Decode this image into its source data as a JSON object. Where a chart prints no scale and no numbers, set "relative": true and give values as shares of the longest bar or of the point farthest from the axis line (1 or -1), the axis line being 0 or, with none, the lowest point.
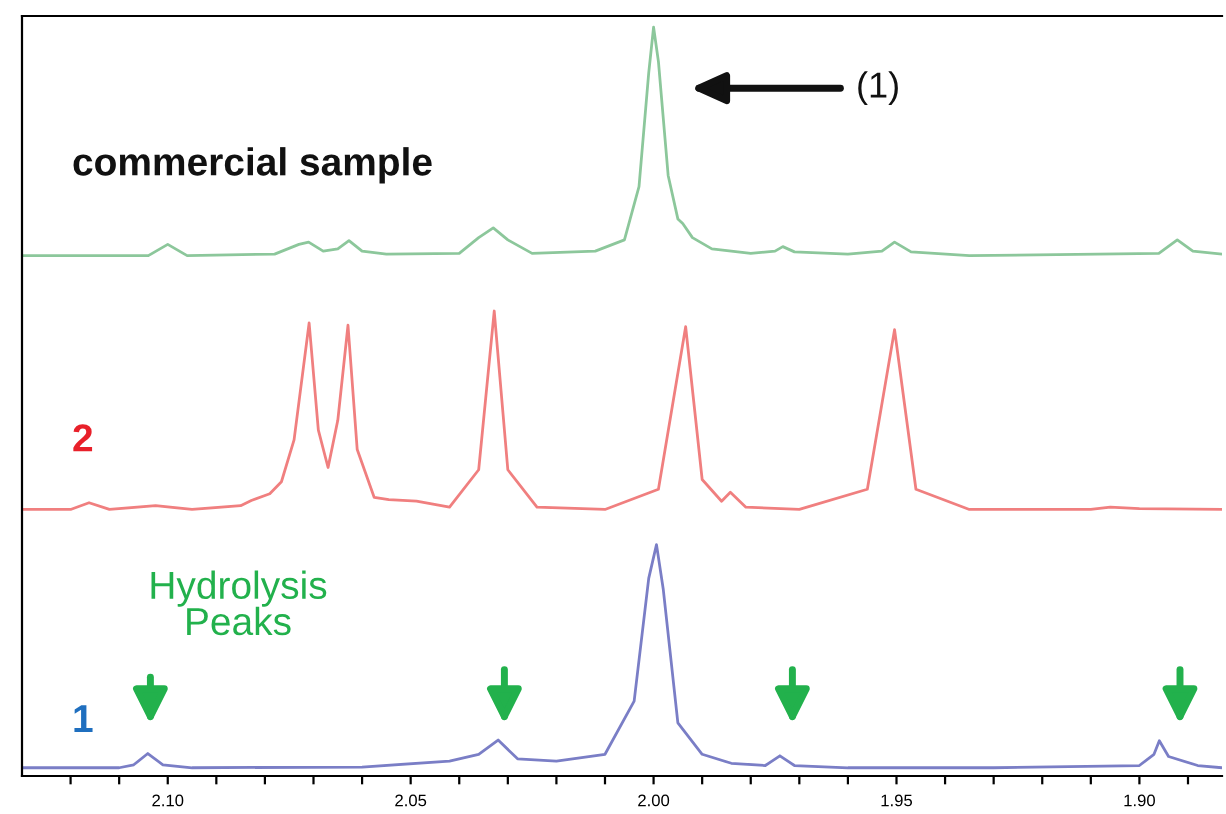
{
  "chart_data": {
    "type": "line",
    "relative": true,
    "xlim": [
      2.13,
      1.883
    ],
    "xticks": [
      {
        "value": 2.12,
        "label": null
      },
      {
        "value": 2.11,
        "label": null
      },
      {
        "value": 2.1,
        "label": "2.10"
      },
      {
        "value": 2.09,
        "label": null
      },
      {
        "value": 2.08,
        "label": null
      },
      {
        "value": 2.07,
        "label": null
      },
      {
        "value": 2.06,
        "label": null
      },
      {
        "value": 2.05,
        "label": "2.05"
      },
      {
        "value": 2.04,
        "label": null
      },
      {
        "value": 2.03,
        "label": null
      },
      {
        "value": 2.02,
        "label": null
      },
      {
        "value": 2.01,
        "label": null
      },
      {
        "value": 2.0,
        "label": "2.00"
      },
      {
        "value": 1.99,
        "label": null
      },
      {
        "value": 1.98,
        "label": null
      },
      {
        "value": 1.97,
        "label": null
      },
      {
        "value": 1.96,
        "label": null
      },
      {
        "value": 1.95,
        "label": "1.95"
      },
      {
        "value": 1.94,
        "label": null
      },
      {
        "value": 1.93,
        "label": null
      },
      {
        "value": 1.92,
        "label": null
      },
      {
        "value": 1.91,
        "label": null
      },
      {
        "value": 1.9,
        "label": "1.90"
      },
      {
        "value": 1.89,
        "label": null
      }
    ],
    "annotations": [
      "(1)",
      "Hydrolysis\nPeaks"
    ],
    "series": [
      {
        "name": "commercial sample",
        "color": "#8cc79b",
        "x": [
          2.13,
          2.104,
          2.1,
          2.096,
          2.078,
          2.073,
          2.071,
          2.068,
          2.065,
          2.0627,
          2.06,
          2.055,
          2.04,
          2.036,
          2.033,
          2.03,
          2.025,
          2.012,
          2.006,
          2.003,
          2.001,
          2.0,
          1.999,
          1.997,
          1.995,
          1.994,
          1.992,
          1.988,
          1.98,
          1.975,
          1.9734,
          1.971,
          1.96,
          1.953,
          1.9504,
          1.947,
          1.935,
          1.896,
          1.8922,
          1.889,
          1.883
        ],
        "values": [
          0.695,
          0.695,
          0.71,
          0.695,
          0.697,
          0.71,
          0.713,
          0.701,
          0.704,
          0.715,
          0.701,
          0.697,
          0.698,
          0.719,
          0.732,
          0.716,
          0.698,
          0.701,
          0.716,
          0.787,
          0.939,
          1.0,
          0.954,
          0.802,
          0.744,
          0.738,
          0.719,
          0.704,
          0.698,
          0.701,
          0.707,
          0.7,
          0.697,
          0.701,
          0.713,
          0.7,
          0.695,
          0.698,
          0.716,
          0.701,
          0.697
        ]
      },
      {
        "name": "2",
        "color": "#f07f7f",
        "x": [
          2.13,
          2.12,
          2.1162,
          2.112,
          2.1025,
          2.095,
          2.085,
          2.0828,
          2.079,
          2.0766,
          2.074,
          2.0709,
          2.069,
          2.067,
          2.065,
          2.0629,
          2.061,
          2.0575,
          2.0545,
          2.0488,
          2.042,
          2.036,
          2.0328,
          2.03,
          2.024,
          2.01,
          1.999,
          1.9934,
          1.99,
          1.986,
          1.9842,
          1.981,
          1.97,
          1.956,
          1.9504,
          1.946,
          1.935,
          1.91,
          1.906,
          1.9,
          1.883
        ],
        "values": [
          0.356,
          0.356,
          0.365,
          0.356,
          0.361,
          0.356,
          0.361,
          0.368,
          0.377,
          0.393,
          0.449,
          0.605,
          0.462,
          0.412,
          0.475,
          0.602,
          0.436,
          0.372,
          0.369,
          0.367,
          0.359,
          0.409,
          0.621,
          0.409,
          0.359,
          0.356,
          0.383,
          0.6,
          0.396,
          0.367,
          0.379,
          0.359,
          0.356,
          0.383,
          0.596,
          0.383,
          0.356,
          0.356,
          0.359,
          0.357,
          0.356
        ]
      },
      {
        "name": "1",
        "color": "#7a7ec6",
        "x": [
          2.13,
          2.11,
          2.107,
          2.1041,
          2.101,
          2.095,
          2.06,
          2.042,
          2.036,
          2.032,
          2.028,
          2.02,
          2.01,
          2.004,
          2.001,
          1.9994,
          1.998,
          1.995,
          1.99,
          1.984,
          1.977,
          1.974,
          1.971,
          1.96,
          1.93,
          1.9,
          1.897,
          1.8959,
          1.894,
          1.888,
          1.883
        ],
        "values": [
          0.011,
          0.011,
          0.015,
          0.03,
          0.015,
          0.011,
          0.012,
          0.02,
          0.029,
          0.048,
          0.023,
          0.02,
          0.029,
          0.1,
          0.264,
          0.309,
          0.249,
          0.071,
          0.029,
          0.017,
          0.014,
          0.027,
          0.014,
          0.011,
          0.011,
          0.014,
          0.029,
          0.047,
          0.026,
          0.014,
          0.011
        ]
      }
    ]
  }
}
